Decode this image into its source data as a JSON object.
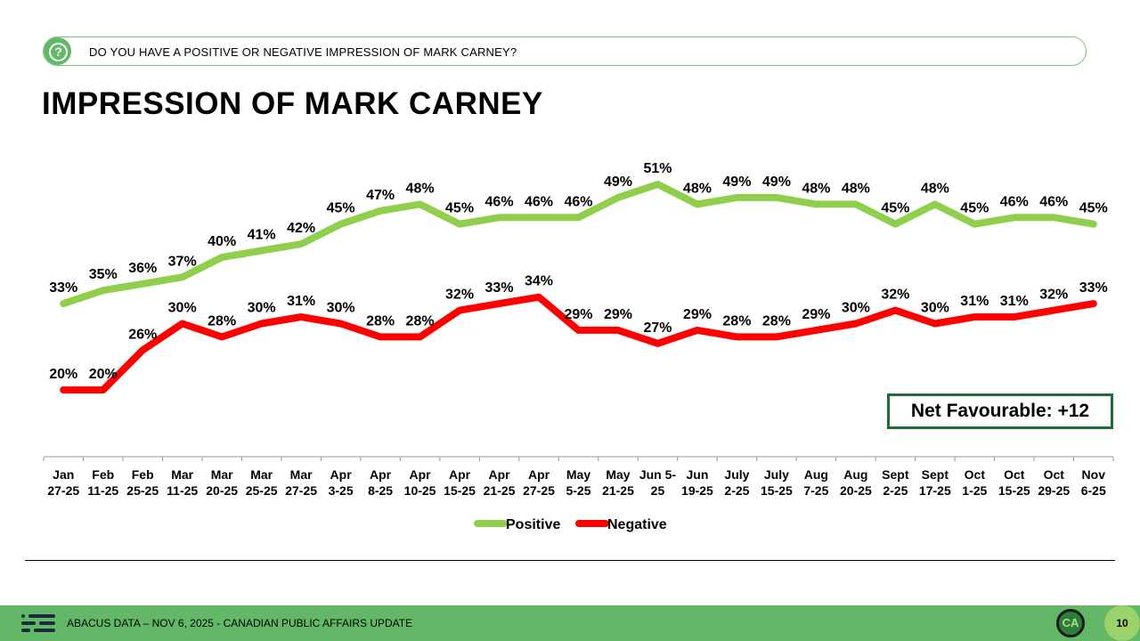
{
  "question": {
    "text": "DO YOU HAVE A POSITIVE OR NEGATIVE IMPRESSION OF MARK CARNEY?",
    "icon": "question-icon"
  },
  "page": {
    "title": "IMPRESSION OF MARK CARNEY"
  },
  "chart_data": {
    "type": "line",
    "title": "IMPRESSION OF MARK CARNEY",
    "categories": [
      [
        "Jan",
        "27-25"
      ],
      [
        "Feb",
        "11-25"
      ],
      [
        "Feb",
        "25-25"
      ],
      [
        "Mar",
        "11-25"
      ],
      [
        "Mar",
        "20-25"
      ],
      [
        "Mar",
        "25-25"
      ],
      [
        "Mar",
        "27-25"
      ],
      [
        "Apr",
        "3-25"
      ],
      [
        "Apr",
        "8-25"
      ],
      [
        "Apr",
        "10-25"
      ],
      [
        "Apr",
        "15-25"
      ],
      [
        "Apr",
        "21-25"
      ],
      [
        "Apr",
        "27-25"
      ],
      [
        "May",
        "5-25"
      ],
      [
        "May",
        "21-25"
      ],
      [
        "Jun 5-",
        "25"
      ],
      [
        "Jun",
        "19-25"
      ],
      [
        "July",
        "2-25"
      ],
      [
        "July",
        "15-25"
      ],
      [
        "Aug",
        "7-25"
      ],
      [
        "Aug",
        "20-25"
      ],
      [
        "Sept",
        "2-25"
      ],
      [
        "Sept",
        "17-25"
      ],
      [
        "Oct",
        "1-25"
      ],
      [
        "Oct",
        "15-25"
      ],
      [
        "Oct",
        "29-25"
      ],
      [
        "Nov",
        "6-25"
      ]
    ],
    "series": [
      {
        "name": "Positive",
        "color": "#8fcf4c",
        "values": [
          33,
          35,
          36,
          37,
          40,
          41,
          42,
          45,
          47,
          48,
          45,
          46,
          46,
          46,
          49,
          51,
          48,
          49,
          49,
          48,
          48,
          45,
          48,
          45,
          46,
          46,
          45
        ]
      },
      {
        "name": "Negative",
        "color": "#ff0000",
        "values": [
          20,
          20,
          26,
          30,
          28,
          30,
          31,
          30,
          28,
          28,
          32,
          33,
          34,
          29,
          29,
          27,
          29,
          28,
          28,
          29,
          30,
          32,
          30,
          31,
          31,
          32,
          33
        ]
      }
    ],
    "value_suffix": "%",
    "legend_position": "bottom",
    "grid": false,
    "annotation": "Net Favourable: +12"
  },
  "footer": {
    "text": "ABACUS DATA – NOV 6, 2025 - CANADIAN PUBLIC AFFAIRS UPDATE",
    "badge": "CA",
    "page_number": "10"
  }
}
